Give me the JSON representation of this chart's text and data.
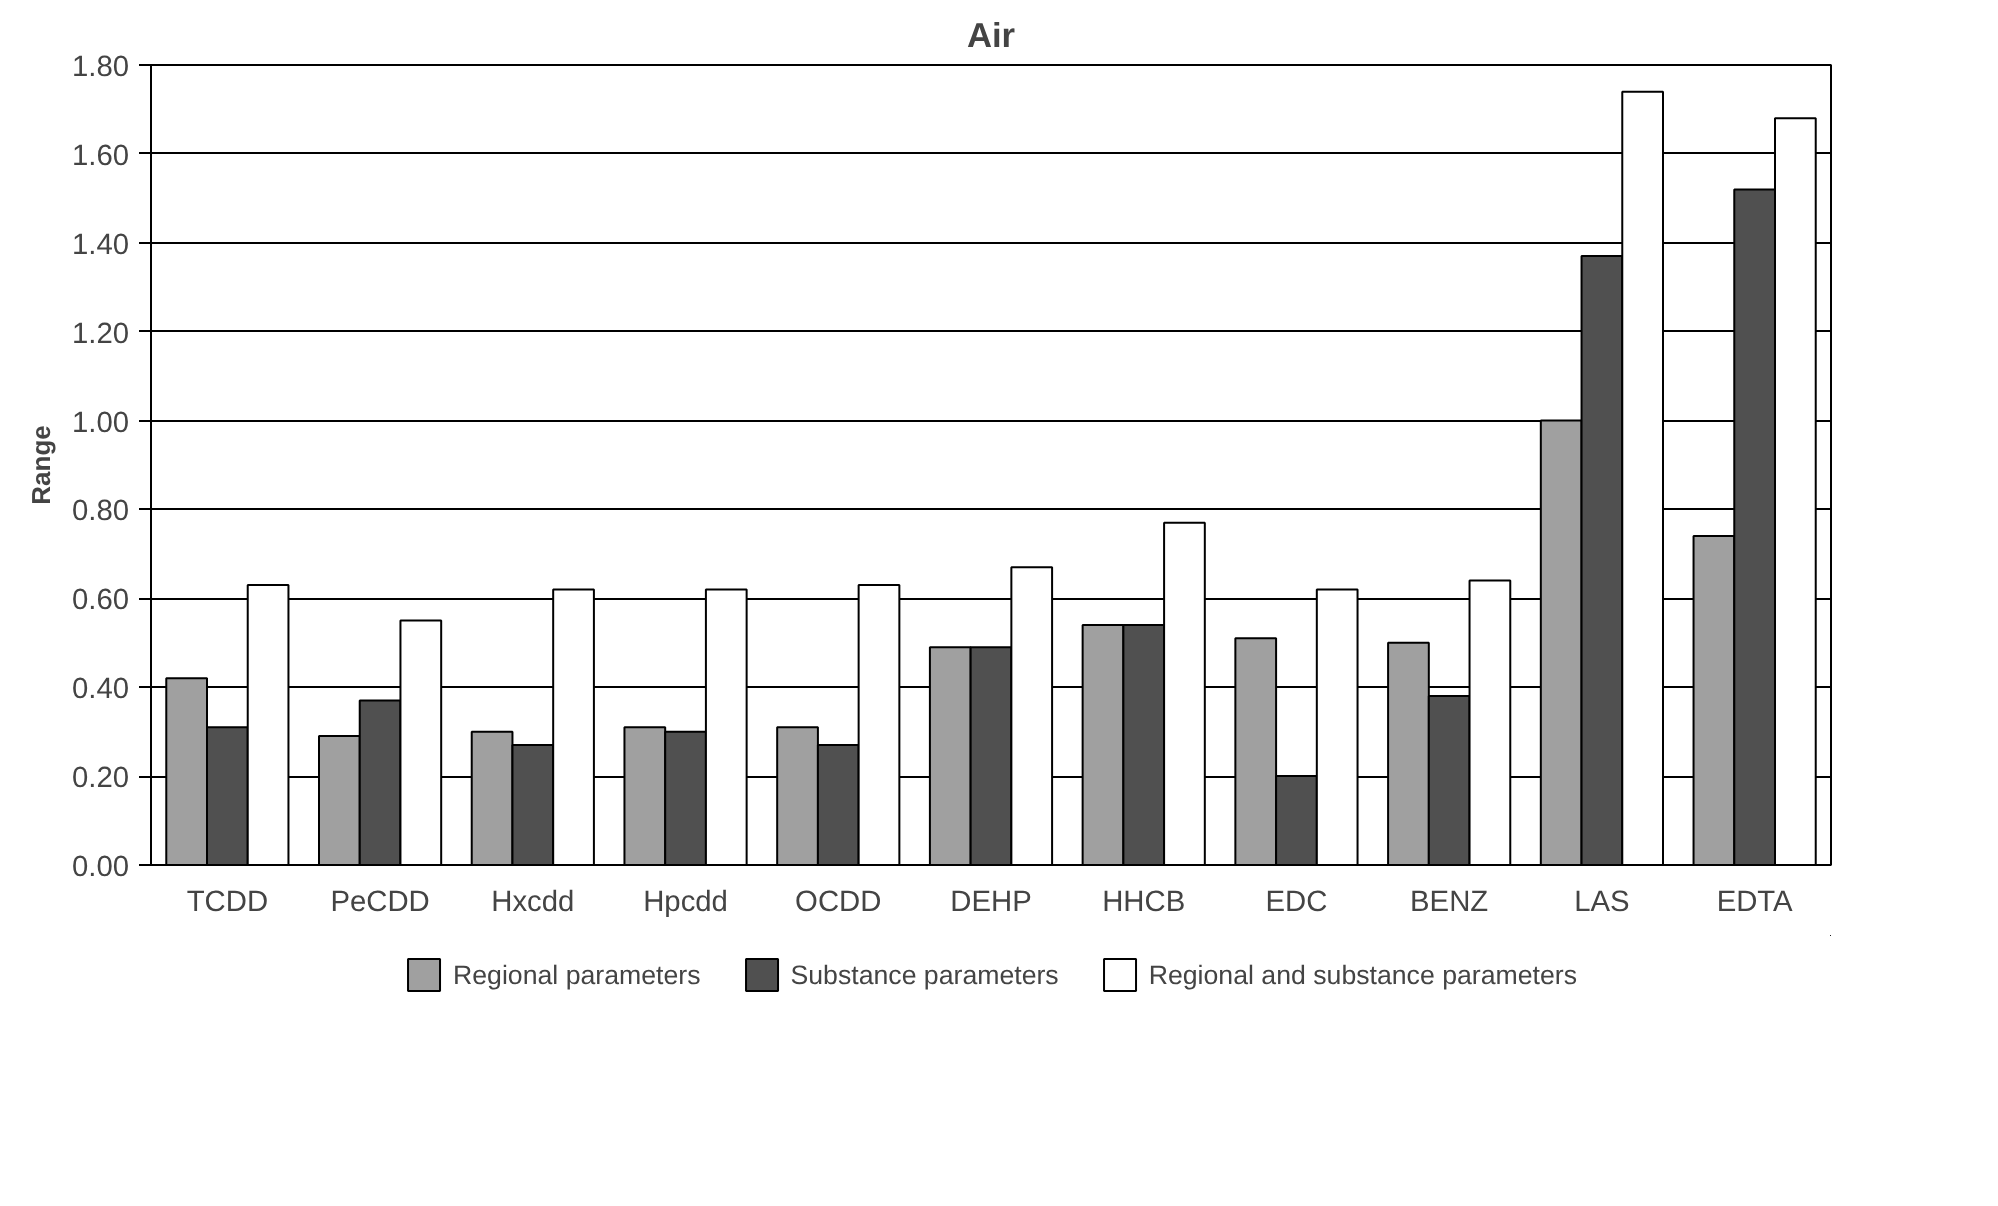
{
  "chart_data": {
    "type": "bar",
    "title": "Air",
    "ylabel": "Range",
    "categories": [
      "TCDD",
      "PeCDD",
      "Hxcdd",
      "Hpcdd",
      "OCDD",
      "DEHP",
      "HHCB",
      "EDC",
      "BENZ",
      "LAS",
      "EDTA"
    ],
    "series": [
      {
        "name": "Regional parameters",
        "color": "#a0a0a0",
        "values": [
          0.42,
          0.29,
          0.3,
          0.31,
          0.31,
          0.49,
          0.54,
          0.51,
          0.5,
          1.0,
          0.74
        ]
      },
      {
        "name": "Substance parameters",
        "color": "#505050",
        "values": [
          0.31,
          0.37,
          0.27,
          0.3,
          0.27,
          0.49,
          0.54,
          0.2,
          0.38,
          1.37,
          1.52
        ]
      },
      {
        "name": "Regional and substance parameters",
        "color": "#ffffff",
        "values": [
          0.63,
          0.55,
          0.62,
          0.62,
          0.63,
          0.67,
          0.77,
          0.62,
          0.64,
          1.74,
          1.68
        ]
      }
    ],
    "ylim": [
      0,
      1.8
    ],
    "yticks": [
      {
        "value": 0,
        "label": "0.00"
      },
      {
        "value": 0.2,
        "label": "0.20"
      },
      {
        "value": 0.4,
        "label": "0.40"
      },
      {
        "value": 0.6,
        "label": "0.60"
      },
      {
        "value": 0.8,
        "label": "0.80"
      },
      {
        "value": 1.0,
        "label": "1.00"
      },
      {
        "value": 1.2,
        "label": "1.20"
      },
      {
        "value": 1.4,
        "label": "1.40"
      },
      {
        "value": 1.6,
        "label": "1.60"
      },
      {
        "value": 1.8,
        "label": "1.80"
      }
    ],
    "grid": "y",
    "legend": "bottom"
  }
}
